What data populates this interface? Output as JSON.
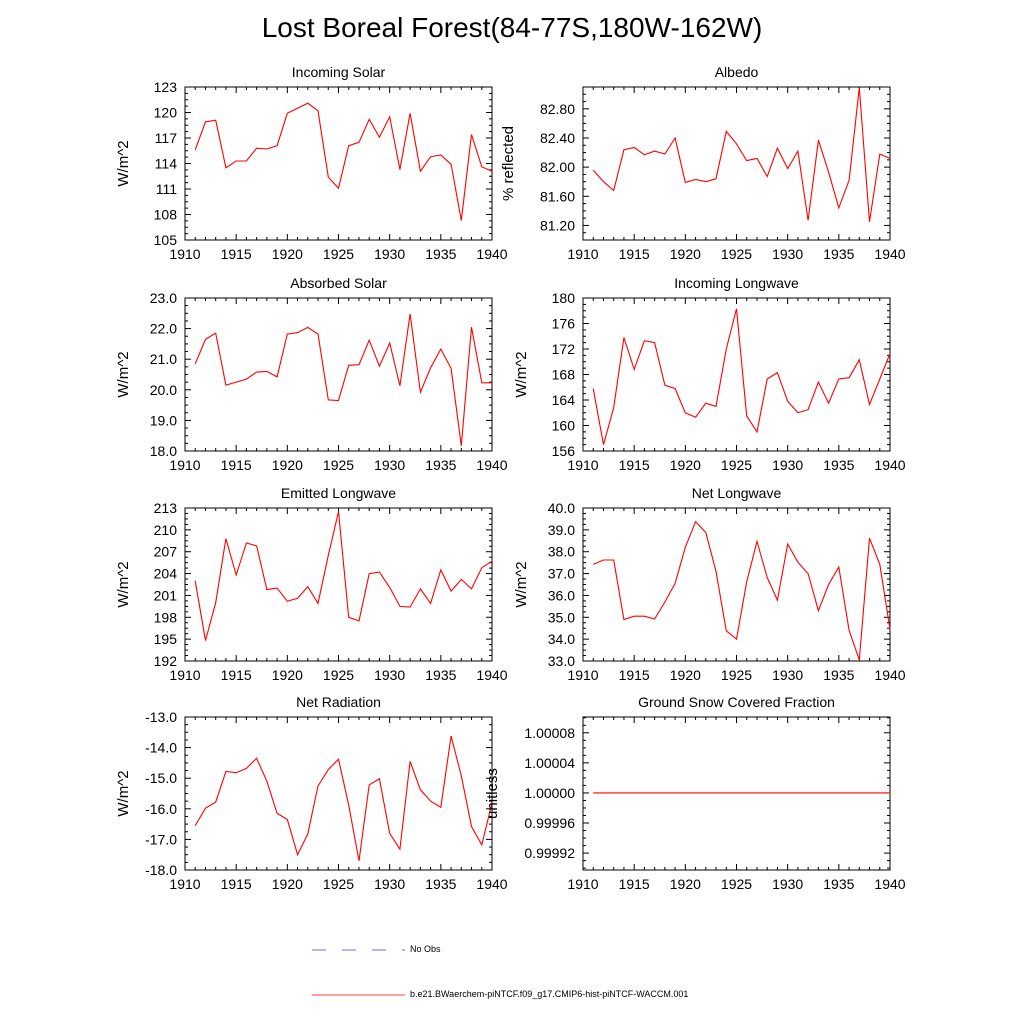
{
  "title": "Lost Boreal Forest(84-77S,180W-162W)",
  "colors": {
    "model_line": "#ff0000",
    "obs_line": "#3b3bff",
    "axis": "#000000"
  },
  "legend": {
    "obs_label": "No Obs",
    "model_label": "b.e21.BWaerchem-piNTCF.f09_g17.CMIP6-hist-piNTCF-WACCM.001"
  },
  "chart_data": [
    {
      "type": "line",
      "title": "Incoming Solar",
      "ylabel": "W/m^2",
      "xlim": [
        1910,
        1940
      ],
      "ylim": [
        105,
        123
      ],
      "xticks": [
        1910,
        1915,
        1920,
        1925,
        1930,
        1935,
        1940
      ],
      "xtick_labels": [
        "1910",
        "1915",
        "1920",
        "1925",
        "1930",
        "1935",
        "1940"
      ],
      "yticks": [
        105,
        108,
        111,
        114,
        117,
        120,
        123
      ],
      "ytick_labels": [
        "105",
        "108",
        "111",
        "114",
        "117",
        "120",
        "123"
      ],
      "x": [
        1911,
        1912,
        1913,
        1914,
        1915,
        1916,
        1917,
        1918,
        1919,
        1920,
        1921,
        1922,
        1923,
        1924,
        1925,
        1926,
        1927,
        1928,
        1929,
        1930,
        1931,
        1932,
        1933,
        1934,
        1935,
        1936,
        1937,
        1938,
        1939,
        1940
      ],
      "series": [
        {
          "values": [
            115.6,
            118.9,
            119.1,
            113.5,
            114.3,
            114.3,
            115.8,
            115.7,
            116.1,
            119.9,
            120.5,
            121.1,
            120.2,
            112.4,
            111.1,
            116.1,
            116.5,
            119.2,
            117.1,
            119.5,
            113.3,
            119.9,
            113.1,
            114.8,
            115.0,
            113.9,
            107.3,
            117.4,
            113.6,
            113.1
          ]
        }
      ]
    },
    {
      "type": "line",
      "title": "Albedo",
      "ylabel": "% reflected",
      "xlim": [
        1910,
        1940
      ],
      "ylim": [
        81.0,
        83.1
      ],
      "xticks": [
        1910,
        1915,
        1920,
        1925,
        1930,
        1935,
        1940
      ],
      "xtick_labels": [
        "1910",
        "1915",
        "1920",
        "1925",
        "1930",
        "1935",
        "1940"
      ],
      "yticks": [
        81.2,
        81.6,
        82.0,
        82.4,
        82.8
      ],
      "ytick_labels": [
        "81.20",
        "81.60",
        "82.00",
        "82.40",
        "82.80"
      ],
      "x": [
        1911,
        1912,
        1913,
        1914,
        1915,
        1916,
        1917,
        1918,
        1919,
        1920,
        1921,
        1922,
        1923,
        1924,
        1925,
        1926,
        1927,
        1928,
        1929,
        1930,
        1931,
        1932,
        1933,
        1934,
        1935,
        1936,
        1937,
        1938,
        1939,
        1940
      ],
      "series": [
        {
          "values": [
            81.96,
            81.8,
            81.68,
            82.24,
            82.27,
            82.17,
            82.22,
            82.18,
            82.4,
            81.79,
            81.83,
            81.8,
            81.84,
            82.49,
            82.32,
            82.09,
            82.12,
            81.87,
            82.26,
            81.98,
            82.22,
            81.27,
            82.37,
            81.93,
            81.44,
            81.82,
            83.09,
            81.25,
            82.18,
            82.12
          ]
        }
      ]
    },
    {
      "type": "line",
      "title": "Absorbed Solar",
      "ylabel": "W/m^2",
      "xlim": [
        1910,
        1940
      ],
      "ylim": [
        18.0,
        23.0
      ],
      "xticks": [
        1910,
        1915,
        1920,
        1925,
        1930,
        1935,
        1940
      ],
      "xtick_labels": [
        "1910",
        "1915",
        "1920",
        "1925",
        "1930",
        "1935",
        "1940"
      ],
      "yticks": [
        18.0,
        19.0,
        20.0,
        21.0,
        22.0,
        23.0
      ],
      "ytick_labels": [
        "18.0",
        "19.0",
        "20.0",
        "21.0",
        "22.0",
        "23.0"
      ],
      "x": [
        1911,
        1912,
        1913,
        1914,
        1915,
        1916,
        1917,
        1918,
        1919,
        1920,
        1921,
        1922,
        1923,
        1924,
        1925,
        1926,
        1927,
        1928,
        1929,
        1930,
        1931,
        1932,
        1933,
        1934,
        1935,
        1936,
        1937,
        1938,
        1939,
        1940
      ],
      "series": [
        {
          "values": [
            20.85,
            21.65,
            21.85,
            20.15,
            20.25,
            20.35,
            20.58,
            20.6,
            20.42,
            21.82,
            21.87,
            22.04,
            21.82,
            19.67,
            19.65,
            20.8,
            20.82,
            21.62,
            20.77,
            21.53,
            20.13,
            22.48,
            19.92,
            20.72,
            21.33,
            20.7,
            18.17,
            22.05,
            20.23,
            20.23
          ]
        }
      ]
    },
    {
      "type": "line",
      "title": "Incoming Longwave",
      "ylabel": "W/m^2",
      "xlim": [
        1910,
        1940
      ],
      "ylim": [
        156,
        180
      ],
      "xticks": [
        1910,
        1915,
        1920,
        1925,
        1930,
        1935,
        1940
      ],
      "xtick_labels": [
        "1910",
        "1915",
        "1920",
        "1925",
        "1930",
        "1935",
        "1940"
      ],
      "yticks": [
        156,
        160,
        164,
        168,
        172,
        176,
        180
      ],
      "ytick_labels": [
        "156",
        "160",
        "164",
        "168",
        "172",
        "176",
        "180"
      ],
      "x": [
        1911,
        1912,
        1913,
        1914,
        1915,
        1916,
        1917,
        1918,
        1919,
        1920,
        1921,
        1922,
        1923,
        1924,
        1925,
        1926,
        1927,
        1928,
        1929,
        1930,
        1931,
        1932,
        1933,
        1934,
        1935,
        1936,
        1937,
        1938,
        1939,
        1940
      ],
      "series": [
        {
          "values": [
            165.8,
            157.0,
            162.8,
            173.8,
            168.8,
            173.3,
            173.0,
            166.3,
            165.8,
            162.0,
            161.3,
            163.5,
            163.0,
            172.0,
            178.3,
            161.5,
            159.0,
            167.3,
            168.3,
            163.8,
            162.0,
            162.5,
            166.8,
            163.5,
            167.3,
            167.5,
            170.3,
            163.3,
            167.3,
            171.3
          ]
        }
      ]
    },
    {
      "type": "line",
      "title": "Emitted Longwave",
      "ylabel": "W/m^2",
      "xlim": [
        1910,
        1940
      ],
      "ylim": [
        192,
        213
      ],
      "xticks": [
        1910,
        1915,
        1920,
        1925,
        1930,
        1935,
        1940
      ],
      "xtick_labels": [
        "1910",
        "1915",
        "1920",
        "1925",
        "1930",
        "1935",
        "1940"
      ],
      "yticks": [
        192,
        195,
        198,
        201,
        204,
        207,
        210,
        213
      ],
      "ytick_labels": [
        "192",
        "195",
        "198",
        "201",
        "204",
        "207",
        "210",
        "213"
      ],
      "x": [
        1911,
        1912,
        1913,
        1914,
        1915,
        1916,
        1917,
        1918,
        1919,
        1920,
        1921,
        1922,
        1923,
        1924,
        1925,
        1926,
        1927,
        1928,
        1929,
        1930,
        1931,
        1932,
        1933,
        1934,
        1935,
        1936,
        1937,
        1938,
        1939,
        1940
      ],
      "series": [
        {
          "values": [
            203.0,
            194.8,
            200.0,
            208.8,
            203.8,
            208.2,
            207.8,
            201.8,
            202.0,
            200.2,
            200.6,
            202.2,
            199.9,
            206.5,
            212.5,
            198.0,
            197.5,
            204.0,
            204.2,
            202.1,
            199.5,
            199.4,
            201.9,
            199.9,
            204.5,
            201.6,
            203.2,
            201.9,
            204.8,
            205.7
          ]
        }
      ]
    },
    {
      "type": "line",
      "title": "Net Longwave",
      "ylabel": "W/m^2",
      "xlim": [
        1910,
        1940
      ],
      "ylim": [
        33.0,
        40.0
      ],
      "xticks": [
        1910,
        1915,
        1920,
        1925,
        1930,
        1935,
        1940
      ],
      "xtick_labels": [
        "1910",
        "1915",
        "1920",
        "1925",
        "1930",
        "1935",
        "1940"
      ],
      "yticks": [
        33.0,
        34.0,
        35.0,
        36.0,
        37.0,
        38.0,
        39.0,
        40.0
      ],
      "ytick_labels": [
        "33.0",
        "34.0",
        "35.0",
        "36.0",
        "37.0",
        "38.0",
        "39.0",
        "40.0"
      ],
      "x": [
        1911,
        1912,
        1913,
        1914,
        1915,
        1916,
        1917,
        1918,
        1919,
        1920,
        1921,
        1922,
        1923,
        1924,
        1925,
        1926,
        1927,
        1928,
        1929,
        1930,
        1931,
        1932,
        1933,
        1934,
        1935,
        1936,
        1937,
        1938,
        1939,
        1940
      ],
      "series": [
        {
          "values": [
            37.42,
            37.62,
            37.62,
            34.9,
            35.05,
            35.05,
            34.92,
            35.7,
            36.55,
            38.2,
            39.38,
            38.88,
            37.1,
            34.38,
            34.0,
            36.62,
            38.47,
            36.82,
            35.78,
            38.35,
            37.52,
            37.0,
            35.3,
            36.5,
            37.3,
            34.4,
            33.05,
            38.62,
            37.42,
            34.45
          ]
        }
      ]
    },
    {
      "type": "line",
      "title": "Net Radiation",
      "ylabel": "W/m^2",
      "xlim": [
        1910,
        1940
      ],
      "ylim": [
        -18.0,
        -13.0
      ],
      "xticks": [
        1910,
        1915,
        1920,
        1925,
        1930,
        1935,
        1940
      ],
      "xtick_labels": [
        "1910",
        "1915",
        "1920",
        "1925",
        "1930",
        "1935",
        "1940"
      ],
      "yticks": [
        -18.0,
        -17.0,
        -16.0,
        -15.0,
        -14.0,
        -13.0
      ],
      "ytick_labels": [
        "-18.0",
        "-17.0",
        "-16.0",
        "-15.0",
        "-14.0",
        "-13.0"
      ],
      "x": [
        1911,
        1912,
        1913,
        1914,
        1915,
        1916,
        1917,
        1918,
        1919,
        1920,
        1921,
        1922,
        1923,
        1924,
        1925,
        1926,
        1927,
        1928,
        1929,
        1930,
        1931,
        1932,
        1933,
        1934,
        1935,
        1936,
        1937,
        1938,
        1939,
        1940
      ],
      "series": [
        {
          "values": [
            -16.55,
            -15.98,
            -15.78,
            -14.78,
            -14.82,
            -14.68,
            -14.35,
            -15.1,
            -16.15,
            -16.35,
            -17.5,
            -16.82,
            -15.25,
            -14.72,
            -14.38,
            -15.88,
            -17.7,
            -15.22,
            -15.02,
            -16.8,
            -17.32,
            -14.45,
            -15.38,
            -15.75,
            -15.95,
            -13.62,
            -14.92,
            -16.58,
            -17.18,
            -15.8
          ]
        }
      ]
    },
    {
      "type": "line",
      "title": "Ground Snow Covered Fraction",
      "ylabel": "unitless",
      "xlim": [
        1910,
        1940
      ],
      "ylim": [
        0.9998975,
        1.000101
      ],
      "xticks": [
        1910,
        1915,
        1920,
        1925,
        1930,
        1935,
        1940
      ],
      "xtick_labels": [
        "1910",
        "1915",
        "1920",
        "1925",
        "1930",
        "1935",
        "1940"
      ],
      "yticks": [
        0.99992,
        0.99996,
        1.0,
        1.00004,
        1.00008
      ],
      "ytick_labels": [
        "0.99992",
        "0.99996",
        "1.00000",
        "1.00004",
        "1.00008"
      ],
      "x": [
        1911,
        1940
      ],
      "series": [
        {
          "values": [
            1.0,
            1.0
          ]
        }
      ]
    }
  ]
}
